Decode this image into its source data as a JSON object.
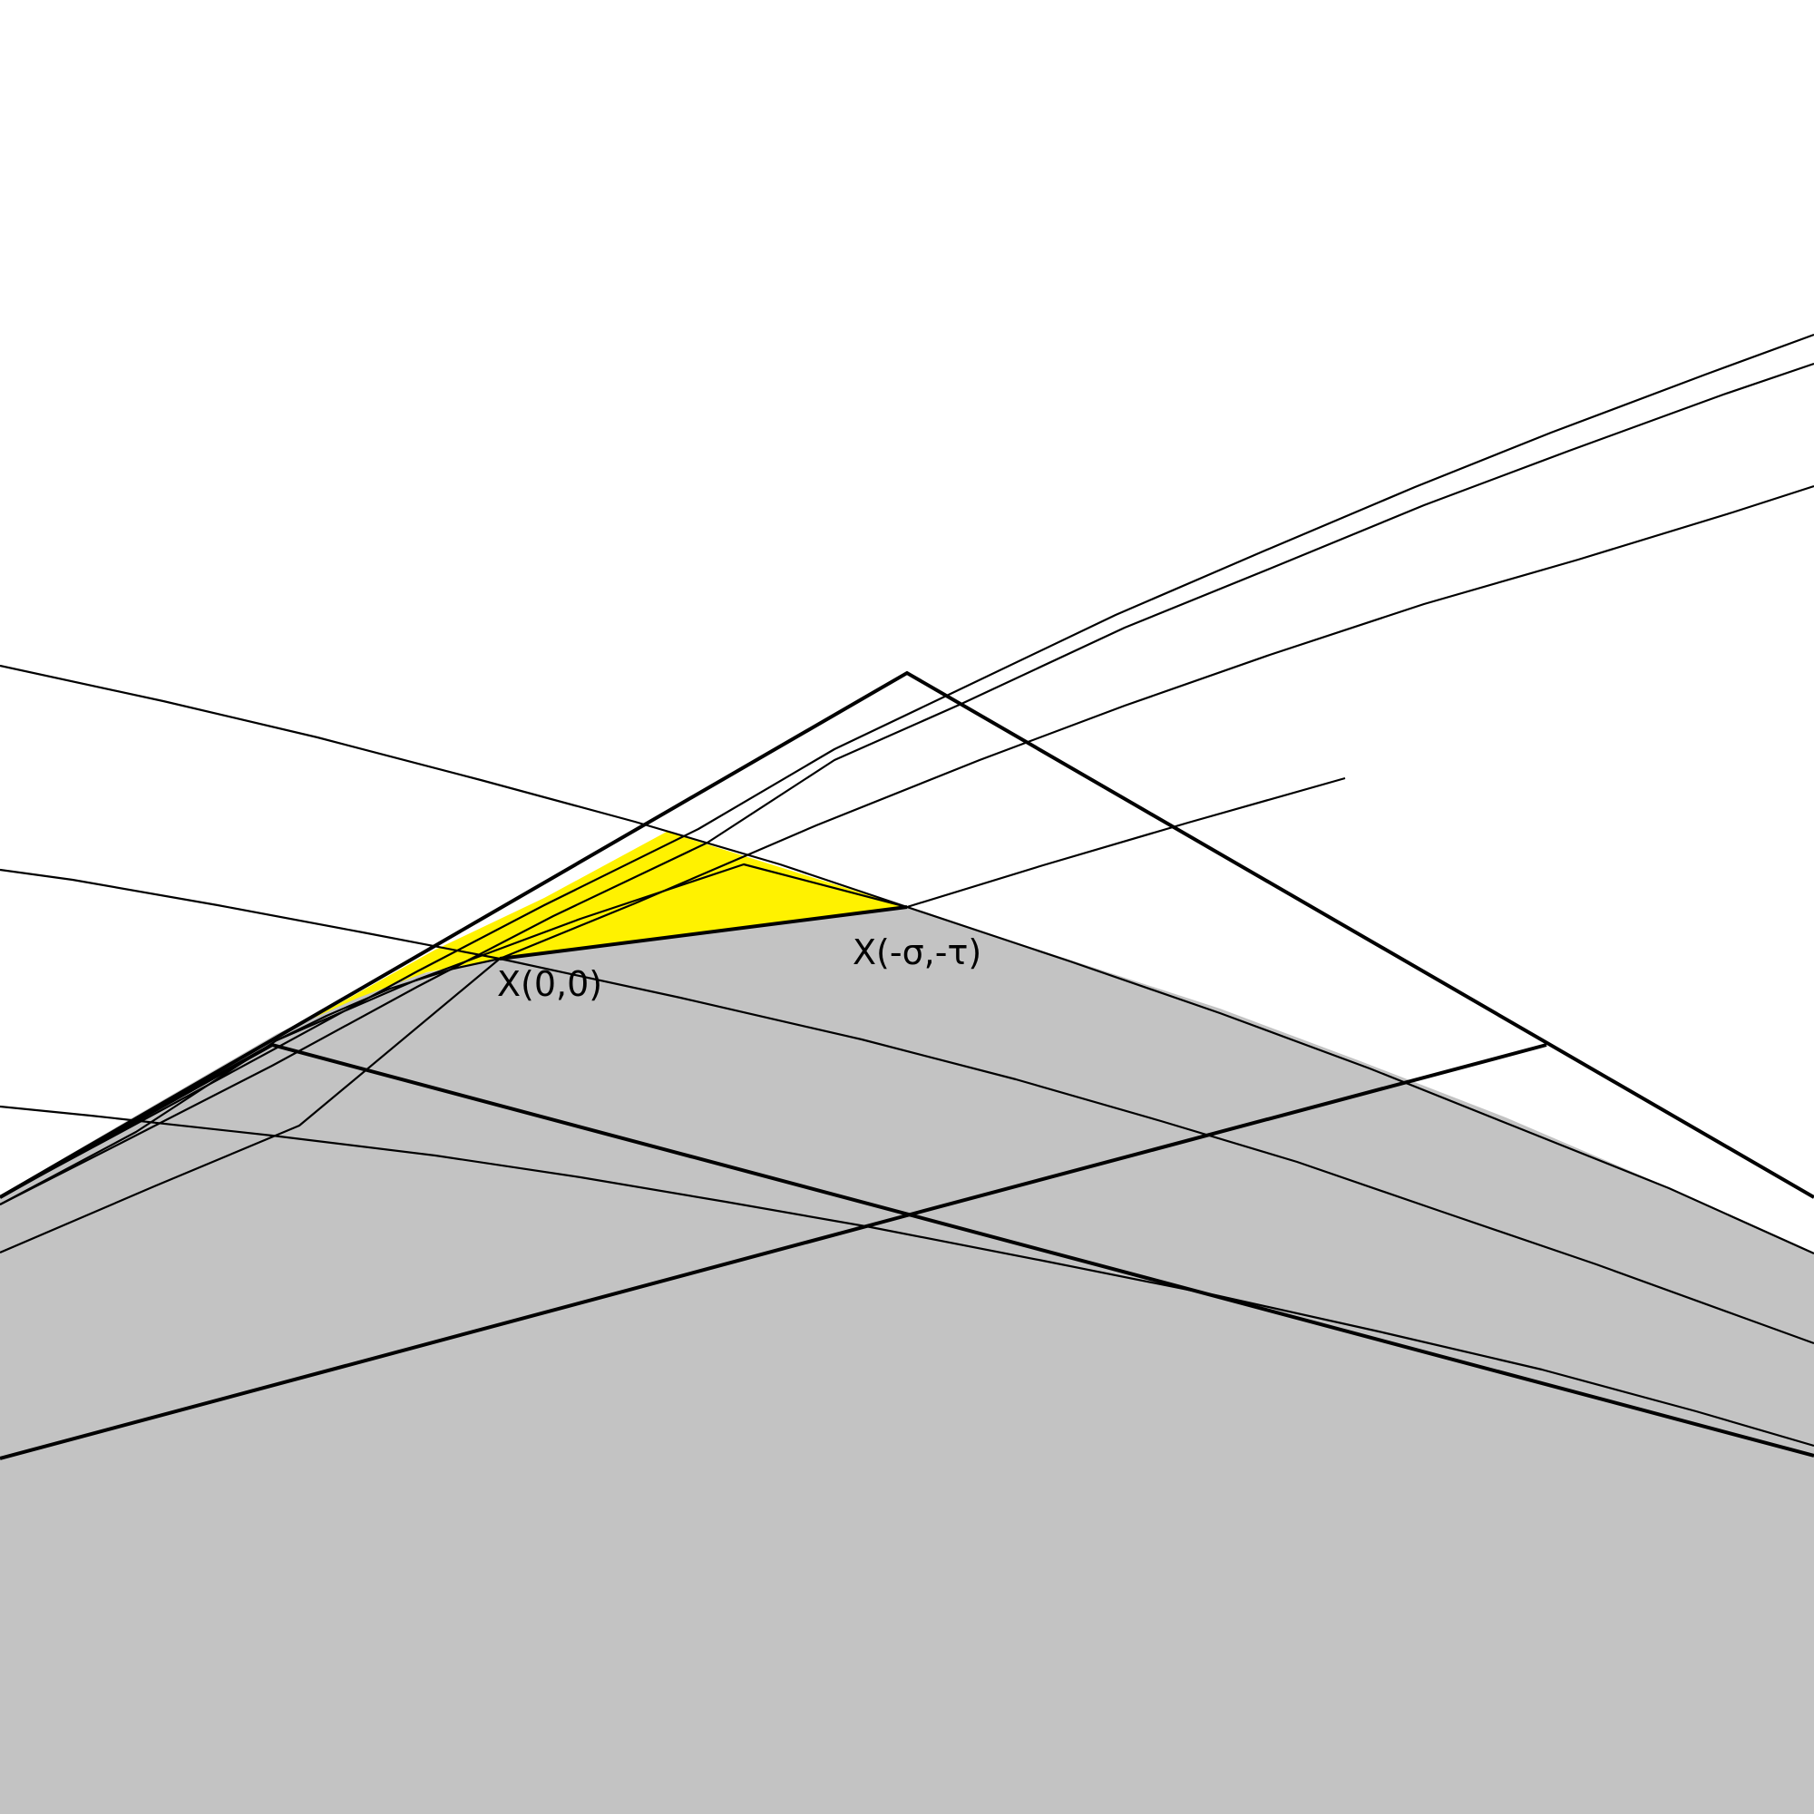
{
  "labels": {
    "origin": "X(0,0)",
    "shifted": "X(-σ,-τ)"
  },
  "colors": {
    "background": "#ffffff",
    "shaded_region": "#c3c3c3",
    "highlight_region": "#fff200",
    "lines": "#000000"
  }
}
